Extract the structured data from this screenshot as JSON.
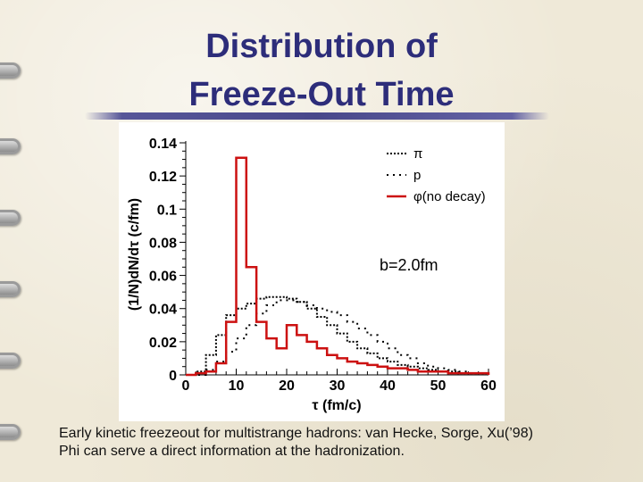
{
  "slide": {
    "title_line1": "Distribution of",
    "title_line2": "Freeze-Out Time",
    "caption_line1": "Early kinetic freezeout for multistrange hadrons: van Hecke, Sorge, Xu(’98)",
    "caption_line2": "Phi can serve a direct information at the hadronization.",
    "title_color": "#2d2d7a"
  },
  "chart_data": {
    "type": "line",
    "step": true,
    "title": "",
    "xlabel": "τ (fm/c)",
    "ylabel": "(1/N)dN/dτ (c/fm)",
    "xlim": [
      0,
      60
    ],
    "ylim": [
      0,
      0.14
    ],
    "x_ticks": [
      "0",
      "10",
      "20",
      "30",
      "40",
      "50",
      "60"
    ],
    "y_ticks": [
      "0",
      "0.02",
      "0.04",
      "0.06",
      "0.08",
      "0.1",
      "0.12",
      "0.14"
    ],
    "annotation": "b=2.0fm",
    "legend_position": "top-right",
    "bin_edges": [
      0,
      2,
      4,
      6,
      8,
      10,
      12,
      14,
      16,
      18,
      20,
      22,
      24,
      26,
      28,
      30,
      32,
      34,
      36,
      38,
      40,
      42,
      44,
      46,
      48,
      50,
      52,
      54,
      56,
      58,
      60
    ],
    "series": [
      {
        "name": "π",
        "style": "dense-dotted",
        "color": "#000000",
        "values": [
          0,
          0.002,
          0.012,
          0.024,
          0.036,
          0.04,
          0.043,
          0.046,
          0.047,
          0.047,
          0.046,
          0.044,
          0.04,
          0.035,
          0.03,
          0.025,
          0.02,
          0.016,
          0.013,
          0.01,
          0.008,
          0.006,
          0.005,
          0.004,
          0.003,
          0.002,
          0.002,
          0.001,
          0.001,
          0.001
        ]
      },
      {
        "name": "p",
        "style": "sparse-dotted",
        "color": "#000000",
        "values": [
          0,
          0,
          0.003,
          0.008,
          0.014,
          0.022,
          0.03,
          0.037,
          0.042,
          0.045,
          0.045,
          0.044,
          0.042,
          0.04,
          0.038,
          0.036,
          0.032,
          0.028,
          0.024,
          0.02,
          0.016,
          0.012,
          0.01,
          0.007,
          0.005,
          0.004,
          0.003,
          0.002,
          0.001,
          0.001
        ]
      },
      {
        "name": "φ",
        "label_suffix": "(no decay)",
        "style": "solid",
        "color": "#cc1111",
        "values": [
          0,
          0.001,
          0.002,
          0.007,
          0.032,
          0.131,
          0.065,
          0.032,
          0.022,
          0.016,
          0.03,
          0.024,
          0.02,
          0.016,
          0.012,
          0.01,
          0.008,
          0.007,
          0.006,
          0.005,
          0.004,
          0.004,
          0.003,
          0.002,
          0.002,
          0.002,
          0.001,
          0.001,
          0.001,
          0.001
        ]
      }
    ]
  }
}
